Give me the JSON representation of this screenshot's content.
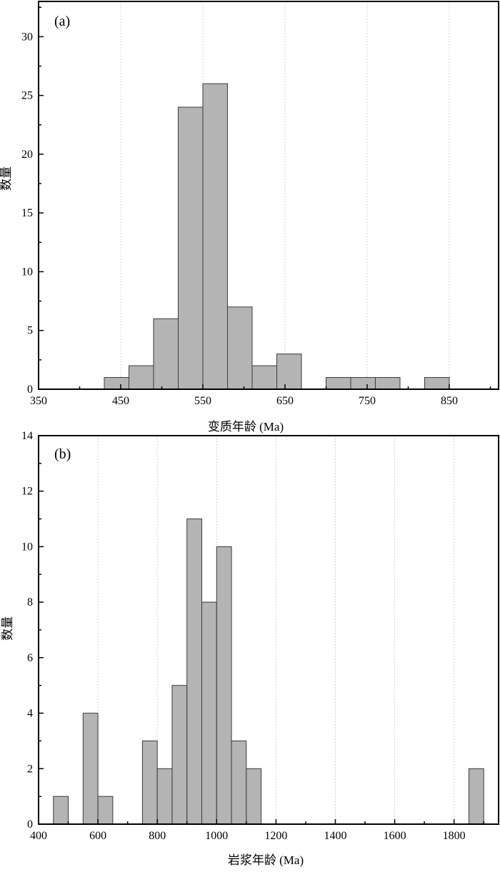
{
  "chart_data": [
    {
      "type": "bar",
      "panel_label": "(a)",
      "xlabel": "变质年龄 (Ma)",
      "ylabel": "数量",
      "xlim": [
        350,
        910
      ],
      "ylim": [
        0,
        33
      ],
      "x_ticks": [
        350,
        450,
        550,
        650,
        750,
        850
      ],
      "y_ticks": [
        0,
        5,
        10,
        15,
        20,
        25,
        30
      ],
      "grid": true,
      "bins": [
        {
          "x0": 430,
          "x1": 460,
          "value": 1
        },
        {
          "x0": 460,
          "x1": 490,
          "value": 2
        },
        {
          "x0": 490,
          "x1": 520,
          "value": 6
        },
        {
          "x0": 520,
          "x1": 550,
          "value": 24
        },
        {
          "x0": 550,
          "x1": 580,
          "value": 26
        },
        {
          "x0": 580,
          "x1": 610,
          "value": 7
        },
        {
          "x0": 610,
          "x1": 640,
          "value": 2
        },
        {
          "x0": 640,
          "x1": 670,
          "value": 3
        },
        {
          "x0": 700,
          "x1": 730,
          "value": 1
        },
        {
          "x0": 730,
          "x1": 760,
          "value": 1
        },
        {
          "x0": 760,
          "x1": 790,
          "value": 1
        },
        {
          "x0": 820,
          "x1": 850,
          "value": 1
        }
      ]
    },
    {
      "type": "bar",
      "panel_label": "(b)",
      "xlabel": "岩浆年龄 (Ma)",
      "ylabel": "数量",
      "xlim": [
        400,
        1950
      ],
      "ylim": [
        0,
        14
      ],
      "x_ticks": [
        400,
        600,
        800,
        1000,
        1200,
        1400,
        1600,
        1800
      ],
      "y_ticks": [
        0,
        2,
        4,
        6,
        8,
        10,
        12,
        14
      ],
      "grid": true,
      "bins": [
        {
          "x0": 450,
          "x1": 500,
          "value": 1
        },
        {
          "x0": 550,
          "x1": 600,
          "value": 4
        },
        {
          "x0": 600,
          "x1": 650,
          "value": 1
        },
        {
          "x0": 750,
          "x1": 800,
          "value": 3
        },
        {
          "x0": 800,
          "x1": 850,
          "value": 2
        },
        {
          "x0": 850,
          "x1": 900,
          "value": 5
        },
        {
          "x0": 900,
          "x1": 950,
          "value": 11
        },
        {
          "x0": 950,
          "x1": 1000,
          "value": 8
        },
        {
          "x0": 1000,
          "x1": 1050,
          "value": 10
        },
        {
          "x0": 1050,
          "x1": 1100,
          "value": 3
        },
        {
          "x0": 1100,
          "x1": 1150,
          "value": 2
        },
        {
          "x0": 1850,
          "x1": 1900,
          "value": 2
        }
      ]
    }
  ]
}
